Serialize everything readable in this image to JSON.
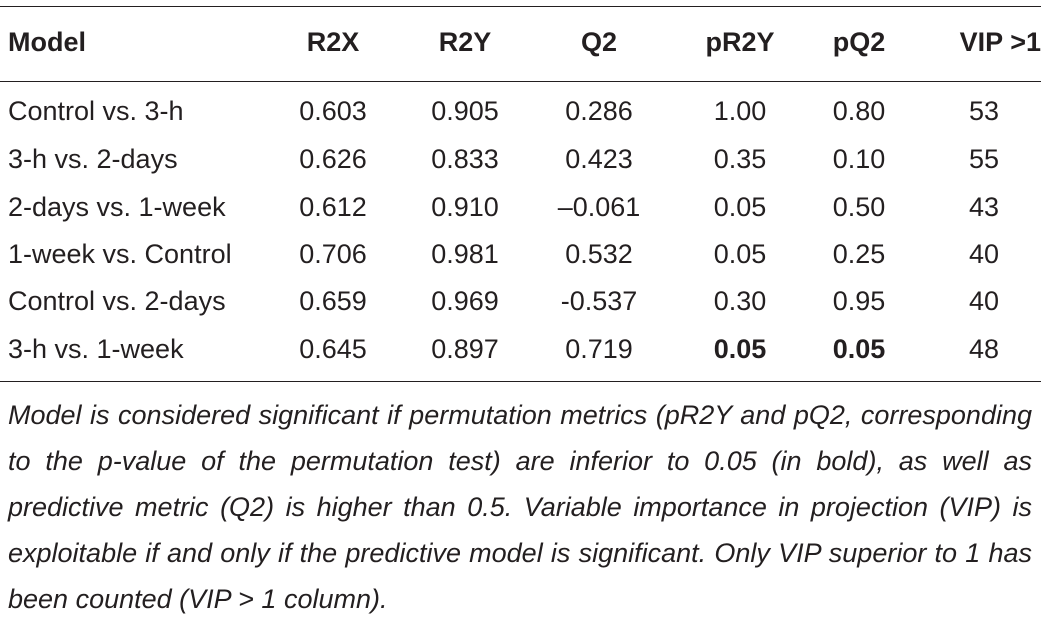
{
  "table": {
    "headers": [
      "Model",
      "R2X",
      "R2Y",
      "Q2",
      "pR2Y",
      "pQ2",
      "VIP >1"
    ],
    "rows": [
      {
        "cells": [
          "Control vs. 3-h",
          "0.603",
          "0.905",
          "0.286",
          "1.00",
          "0.80",
          "53"
        ],
        "bold": [
          false,
          false,
          false,
          false,
          false,
          false,
          false
        ]
      },
      {
        "cells": [
          "3-h vs. 2-days",
          "0.626",
          "0.833",
          "0.423",
          "0.35",
          "0.10",
          "55"
        ],
        "bold": [
          false,
          false,
          false,
          false,
          false,
          false,
          false
        ]
      },
      {
        "cells": [
          "2-days vs. 1-week",
          "0.612",
          "0.910",
          "–0.061",
          "0.05",
          "0.50",
          "43"
        ],
        "bold": [
          false,
          false,
          false,
          false,
          false,
          false,
          false
        ]
      },
      {
        "cells": [
          "1-week vs. Control",
          "0.706",
          "0.981",
          "0.532",
          "0.05",
          "0.25",
          "40"
        ],
        "bold": [
          false,
          false,
          false,
          false,
          false,
          false,
          false
        ]
      },
      {
        "cells": [
          "Control vs. 2-days",
          "0.659",
          "0.969",
          "-0.537",
          "0.30",
          "0.95",
          "40"
        ],
        "bold": [
          false,
          false,
          false,
          false,
          false,
          false,
          false
        ]
      },
      {
        "cells": [
          "3-h vs. 1-week",
          "0.645",
          "0.897",
          "0.719",
          "0.05",
          "0.05",
          "48"
        ],
        "bold": [
          false,
          false,
          false,
          false,
          true,
          true,
          false
        ]
      }
    ]
  },
  "footnote": "Model is considered significant if permutation metrics (pR2Y and pQ2, corresponding to the p-value of the permutation test) are inferior to 0.05 (in bold), as well as predictive metric (Q2) is higher than 0.5. Variable importance in projection (VIP) is exploitable if and only if the predictive model is significant. Only VIP superior to 1 has been counted (VIP > 1 column)."
}
